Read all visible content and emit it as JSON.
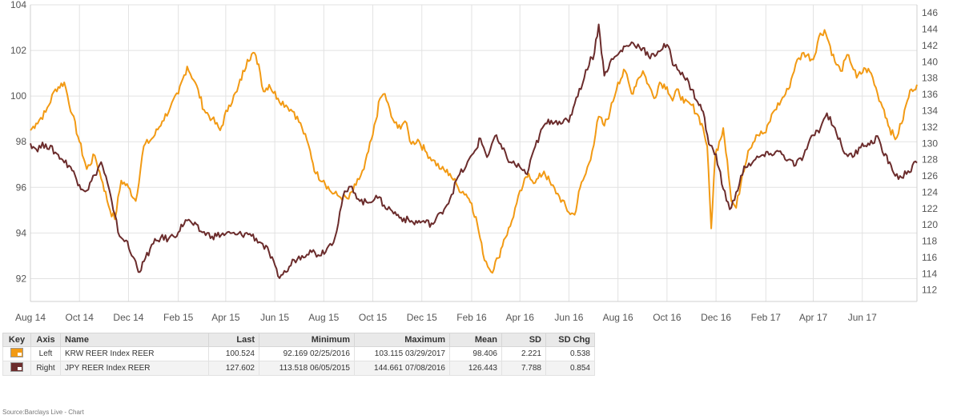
{
  "chart_data": {
    "type": "line",
    "x_ticks": [
      "Aug 14",
      "Oct 14",
      "Dec 14",
      "Feb 15",
      "Apr 15",
      "Jun 15",
      "Aug 15",
      "Oct 15",
      "Dec 15",
      "Feb 16",
      "Apr 16",
      "Jun 16",
      "Aug 16",
      "Oct 16",
      "Dec 16",
      "Feb 17",
      "Apr 17",
      "Jun 17"
    ],
    "x_range": [
      "2014-08-01",
      "2017-08-08"
    ],
    "y_left": {
      "ticks": [
        "92",
        "94",
        "96",
        "98",
        "100",
        "102",
        "104"
      ],
      "range": [
        91,
        104
      ]
    },
    "y_right": {
      "ticks": [
        "112",
        "114",
        "116",
        "118",
        "120",
        "122",
        "124",
        "126",
        "128",
        "130",
        "132",
        "134",
        "136",
        "138",
        "140",
        "142",
        "144",
        "146"
      ],
      "range": [
        110.6,
        147
      ]
    },
    "grid": true,
    "series": [
      {
        "name": "KRW REER Index REER",
        "axis": "left",
        "color": "#f29a14",
        "points": [
          [
            "2014-08-01",
            98.5
          ],
          [
            "2014-08-08",
            98.8
          ],
          [
            "2014-08-20",
            99.3
          ],
          [
            "2014-09-01",
            100.3
          ],
          [
            "2014-09-12",
            100.6
          ],
          [
            "2014-09-22",
            99.2
          ],
          [
            "2014-10-01",
            98.0
          ],
          [
            "2014-10-10",
            96.8
          ],
          [
            "2014-10-20",
            97.4
          ],
          [
            "2014-10-30",
            96.2
          ],
          [
            "2014-11-08",
            95.0
          ],
          [
            "2014-11-14",
            94.6
          ],
          [
            "2014-11-22",
            96.3
          ],
          [
            "2014-12-01",
            96.0
          ],
          [
            "2014-12-10",
            95.4
          ],
          [
            "2014-12-20",
            97.8
          ],
          [
            "2015-01-01",
            98.2
          ],
          [
            "2015-01-12",
            98.9
          ],
          [
            "2015-01-22",
            99.5
          ],
          [
            "2015-02-01",
            100.1
          ],
          [
            "2015-02-12",
            101.3
          ],
          [
            "2015-02-22",
            100.6
          ],
          [
            "2015-03-05",
            99.4
          ],
          [
            "2015-03-15",
            99.0
          ],
          [
            "2015-03-25",
            98.5
          ],
          [
            "2015-04-05",
            99.6
          ],
          [
            "2015-04-15",
            100.2
          ],
          [
            "2015-04-28",
            101.6
          ],
          [
            "2015-05-05",
            101.9
          ],
          [
            "2015-05-12",
            101.4
          ],
          [
            "2015-05-18",
            100.2
          ],
          [
            "2015-05-25",
            100.5
          ],
          [
            "2015-06-05",
            99.9
          ],
          [
            "2015-06-15",
            99.6
          ],
          [
            "2015-06-25",
            99.3
          ],
          [
            "2015-07-05",
            98.6
          ],
          [
            "2015-07-15",
            97.6
          ],
          [
            "2015-07-22",
            96.6
          ],
          [
            "2015-08-01",
            96.3
          ],
          [
            "2015-08-10",
            95.8
          ],
          [
            "2015-08-20",
            95.6
          ],
          [
            "2015-09-01",
            95.5
          ],
          [
            "2015-09-10",
            96.1
          ],
          [
            "2015-09-20",
            96.8
          ],
          [
            "2015-10-01",
            98.3
          ],
          [
            "2015-10-10",
            99.9
          ],
          [
            "2015-10-16",
            100.1
          ],
          [
            "2015-10-24",
            99.1
          ],
          [
            "2015-11-01",
            98.6
          ],
          [
            "2015-11-10",
            98.9
          ],
          [
            "2015-11-18",
            97.9
          ],
          [
            "2015-11-26",
            98.1
          ],
          [
            "2015-12-05",
            97.6
          ],
          [
            "2015-12-15",
            97.2
          ],
          [
            "2015-12-25",
            96.8
          ],
          [
            "2016-01-05",
            96.6
          ],
          [
            "2016-01-15",
            96.0
          ],
          [
            "2016-01-25",
            95.7
          ],
          [
            "2016-02-01",
            95.3
          ],
          [
            "2016-02-08",
            94.4
          ],
          [
            "2016-02-15",
            93.1
          ],
          [
            "2016-02-25",
            92.3
          ],
          [
            "2016-03-05",
            92.9
          ],
          [
            "2016-03-12",
            93.7
          ],
          [
            "2016-03-20",
            94.3
          ],
          [
            "2016-03-28",
            95.3
          ],
          [
            "2016-04-05",
            96.1
          ],
          [
            "2016-04-12",
            96.6
          ],
          [
            "2016-04-20",
            96.2
          ],
          [
            "2016-05-01",
            96.7
          ],
          [
            "2016-05-10",
            96.1
          ],
          [
            "2016-05-20",
            95.6
          ],
          [
            "2016-06-01",
            94.9
          ],
          [
            "2016-06-08",
            94.8
          ],
          [
            "2016-06-15",
            96.0
          ],
          [
            "2016-06-22",
            96.6
          ],
          [
            "2016-06-30",
            97.6
          ],
          [
            "2016-07-08",
            99.1
          ],
          [
            "2016-07-15",
            98.7
          ],
          [
            "2016-07-22",
            99.3
          ],
          [
            "2016-08-01",
            100.6
          ],
          [
            "2016-08-10",
            101.1
          ],
          [
            "2016-08-18",
            100.1
          ],
          [
            "2016-08-25",
            100.7
          ],
          [
            "2016-09-01",
            101.1
          ],
          [
            "2016-09-08",
            100.5
          ],
          [
            "2016-09-15",
            99.9
          ],
          [
            "2016-09-22",
            100.6
          ],
          [
            "2016-10-01",
            100.4
          ],
          [
            "2016-10-08",
            99.8
          ],
          [
            "2016-10-15",
            100.3
          ],
          [
            "2016-10-22",
            99.7
          ],
          [
            "2016-11-01",
            99.6
          ],
          [
            "2016-11-08",
            99.2
          ],
          [
            "2016-11-15",
            98.6
          ],
          [
            "2016-11-20",
            97.8
          ],
          [
            "2016-11-25",
            94.2
          ],
          [
            "2016-11-30",
            97.4
          ],
          [
            "2016-12-05",
            98.0
          ],
          [
            "2016-12-10",
            98.6
          ],
          [
            "2016-12-15",
            97.2
          ],
          [
            "2016-12-20",
            95.4
          ],
          [
            "2016-12-26",
            95.1
          ],
          [
            "2017-01-03",
            96.6
          ],
          [
            "2017-01-10",
            97.6
          ],
          [
            "2017-01-20",
            98.3
          ],
          [
            "2017-02-01",
            98.4
          ],
          [
            "2017-02-10",
            99.3
          ],
          [
            "2017-02-20",
            99.8
          ],
          [
            "2017-03-01",
            100.3
          ],
          [
            "2017-03-10",
            101.4
          ],
          [
            "2017-03-20",
            101.9
          ],
          [
            "2017-04-01",
            101.6
          ],
          [
            "2017-04-08",
            102.6
          ],
          [
            "2017-04-15",
            102.9
          ],
          [
            "2017-04-20",
            102.4
          ],
          [
            "2017-04-28",
            101.5
          ],
          [
            "2017-05-05",
            101.1
          ],
          [
            "2017-05-15",
            101.8
          ],
          [
            "2017-05-25",
            100.8
          ],
          [
            "2017-06-05",
            101.2
          ],
          [
            "2017-06-12",
            101.0
          ],
          [
            "2017-06-20",
            100.1
          ],
          [
            "2017-06-28",
            99.4
          ],
          [
            "2017-07-05",
            98.6
          ],
          [
            "2017-07-12",
            98.1
          ],
          [
            "2017-07-20",
            98.8
          ],
          [
            "2017-07-27",
            99.8
          ],
          [
            "2017-08-01",
            100.3
          ],
          [
            "2017-08-08",
            100.5
          ]
        ]
      },
      {
        "name": "JPY REER Index REER",
        "axis": "right",
        "color": "#6b2c2c",
        "points": [
          [
            "2014-08-01",
            130.0
          ],
          [
            "2014-08-08",
            129.3
          ],
          [
            "2014-08-20",
            129.9
          ],
          [
            "2014-09-01",
            128.9
          ],
          [
            "2014-09-10",
            128.0
          ],
          [
            "2014-09-20",
            127.1
          ],
          [
            "2014-10-01",
            124.9
          ],
          [
            "2014-10-10",
            124.2
          ],
          [
            "2014-10-20",
            126.1
          ],
          [
            "2014-10-28",
            127.7
          ],
          [
            "2014-11-05",
            125.1
          ],
          [
            "2014-11-12",
            121.8
          ],
          [
            "2014-11-20",
            118.6
          ],
          [
            "2014-11-28",
            118.1
          ],
          [
            "2014-12-05",
            116.2
          ],
          [
            "2014-12-10",
            115.5
          ],
          [
            "2014-12-15",
            114.2
          ],
          [
            "2014-12-22",
            115.9
          ],
          [
            "2015-01-01",
            117.7
          ],
          [
            "2015-01-10",
            118.4
          ],
          [
            "2015-01-20",
            118.3
          ],
          [
            "2015-02-01",
            119.1
          ],
          [
            "2015-02-10",
            120.6
          ],
          [
            "2015-02-18",
            120.2
          ],
          [
            "2015-03-01",
            119.2
          ],
          [
            "2015-03-15",
            118.6
          ],
          [
            "2015-04-01",
            118.9
          ],
          [
            "2015-04-15",
            118.8
          ],
          [
            "2015-05-01",
            118.9
          ],
          [
            "2015-05-15",
            117.8
          ],
          [
            "2015-05-25",
            116.6
          ],
          [
            "2015-06-05",
            113.7
          ],
          [
            "2015-06-15",
            114.2
          ],
          [
            "2015-06-25",
            115.7
          ],
          [
            "2015-07-05",
            116.2
          ],
          [
            "2015-07-15",
            116.9
          ],
          [
            "2015-07-25",
            116.3
          ],
          [
            "2015-08-05",
            117.1
          ],
          [
            "2015-08-15",
            118.5
          ],
          [
            "2015-08-25",
            123.5
          ],
          [
            "2015-09-05",
            124.7
          ],
          [
            "2015-09-15",
            122.9
          ],
          [
            "2015-09-25",
            122.7
          ],
          [
            "2015-10-05",
            123.6
          ],
          [
            "2015-10-15",
            122.4
          ],
          [
            "2015-10-25",
            121.7
          ],
          [
            "2015-11-05",
            120.9
          ],
          [
            "2015-11-20",
            120.3
          ],
          [
            "2015-12-01",
            120.4
          ],
          [
            "2015-12-15",
            120.1
          ],
          [
            "2015-12-25",
            121.5
          ],
          [
            "2016-01-05",
            123.2
          ],
          [
            "2016-01-15",
            125.9
          ],
          [
            "2016-01-25",
            127.2
          ],
          [
            "2016-02-05",
            129.1
          ],
          [
            "2016-02-12",
            130.6
          ],
          [
            "2016-02-20",
            128.3
          ],
          [
            "2016-03-01",
            130.9
          ],
          [
            "2016-03-10",
            129.3
          ],
          [
            "2016-03-20",
            127.7
          ],
          [
            "2016-04-01",
            127.1
          ],
          [
            "2016-04-10",
            126.2
          ],
          [
            "2016-04-20",
            129.6
          ],
          [
            "2016-05-01",
            132.2
          ],
          [
            "2016-05-10",
            132.8
          ],
          [
            "2016-05-20",
            132.7
          ],
          [
            "2016-06-01",
            132.6
          ],
          [
            "2016-06-10",
            135.6
          ],
          [
            "2016-06-20",
            138.0
          ],
          [
            "2016-06-28",
            140.6
          ],
          [
            "2016-07-01",
            140.3
          ],
          [
            "2016-07-08",
            144.6
          ],
          [
            "2016-07-15",
            138.3
          ],
          [
            "2016-07-22",
            139.9
          ],
          [
            "2016-08-01",
            140.9
          ],
          [
            "2016-08-10",
            141.9
          ],
          [
            "2016-08-20",
            142.3
          ],
          [
            "2016-09-01",
            141.7
          ],
          [
            "2016-09-10",
            140.4
          ],
          [
            "2016-09-20",
            141.3
          ],
          [
            "2016-10-01",
            142.1
          ],
          [
            "2016-10-10",
            139.5
          ],
          [
            "2016-10-20",
            138.7
          ],
          [
            "2016-11-01",
            136.6
          ],
          [
            "2016-11-08",
            135.1
          ],
          [
            "2016-11-15",
            133.9
          ],
          [
            "2016-11-22",
            129.9
          ],
          [
            "2016-12-01",
            128.7
          ],
          [
            "2016-12-10",
            124.4
          ],
          [
            "2016-12-18",
            121.9
          ],
          [
            "2016-12-28",
            124.2
          ],
          [
            "2017-01-05",
            127.2
          ],
          [
            "2017-01-15",
            127.6
          ],
          [
            "2017-01-25",
            128.4
          ],
          [
            "2017-02-05",
            128.6
          ],
          [
            "2017-02-15",
            129.1
          ],
          [
            "2017-03-01",
            128.0
          ],
          [
            "2017-03-10",
            127.3
          ],
          [
            "2017-03-20",
            128.5
          ],
          [
            "2017-04-01",
            131.0
          ],
          [
            "2017-04-10",
            131.9
          ],
          [
            "2017-04-18",
            133.7
          ],
          [
            "2017-04-28",
            131.9
          ],
          [
            "2017-05-08",
            129.1
          ],
          [
            "2017-05-20",
            128.3
          ],
          [
            "2017-06-01",
            130.0
          ],
          [
            "2017-06-10",
            129.8
          ],
          [
            "2017-06-20",
            130.9
          ],
          [
            "2017-06-28",
            128.5
          ],
          [
            "2017-07-05",
            127.7
          ],
          [
            "2017-07-12",
            126.0
          ],
          [
            "2017-07-20",
            125.8
          ],
          [
            "2017-07-28",
            126.6
          ],
          [
            "2017-08-08",
            127.6
          ]
        ]
      }
    ]
  },
  "table": {
    "headers": [
      "Key",
      "Axis",
      "Name",
      "Last",
      "Minimum",
      "Maximum",
      "Mean",
      "SD",
      "SD Chg"
    ],
    "rows": [
      {
        "key_color": "#f29a14",
        "axis": "Left",
        "name": "KRW REER Index REER",
        "last": "100.524",
        "minimum": "92.169 02/25/2016",
        "maximum": "103.115 03/29/2017",
        "mean": "98.406",
        "sd": "2.221",
        "sd_chg": "0.538"
      },
      {
        "key_color": "#6b2c2c",
        "axis": "Right",
        "name": "JPY REER Index REER",
        "last": "127.602",
        "minimum": "113.518 06/05/2015",
        "maximum": "144.661 07/08/2016",
        "mean": "126.443",
        "sd": "7.788",
        "sd_chg": "0.854"
      }
    ]
  },
  "source": "Source:Barclays Live - Chart"
}
